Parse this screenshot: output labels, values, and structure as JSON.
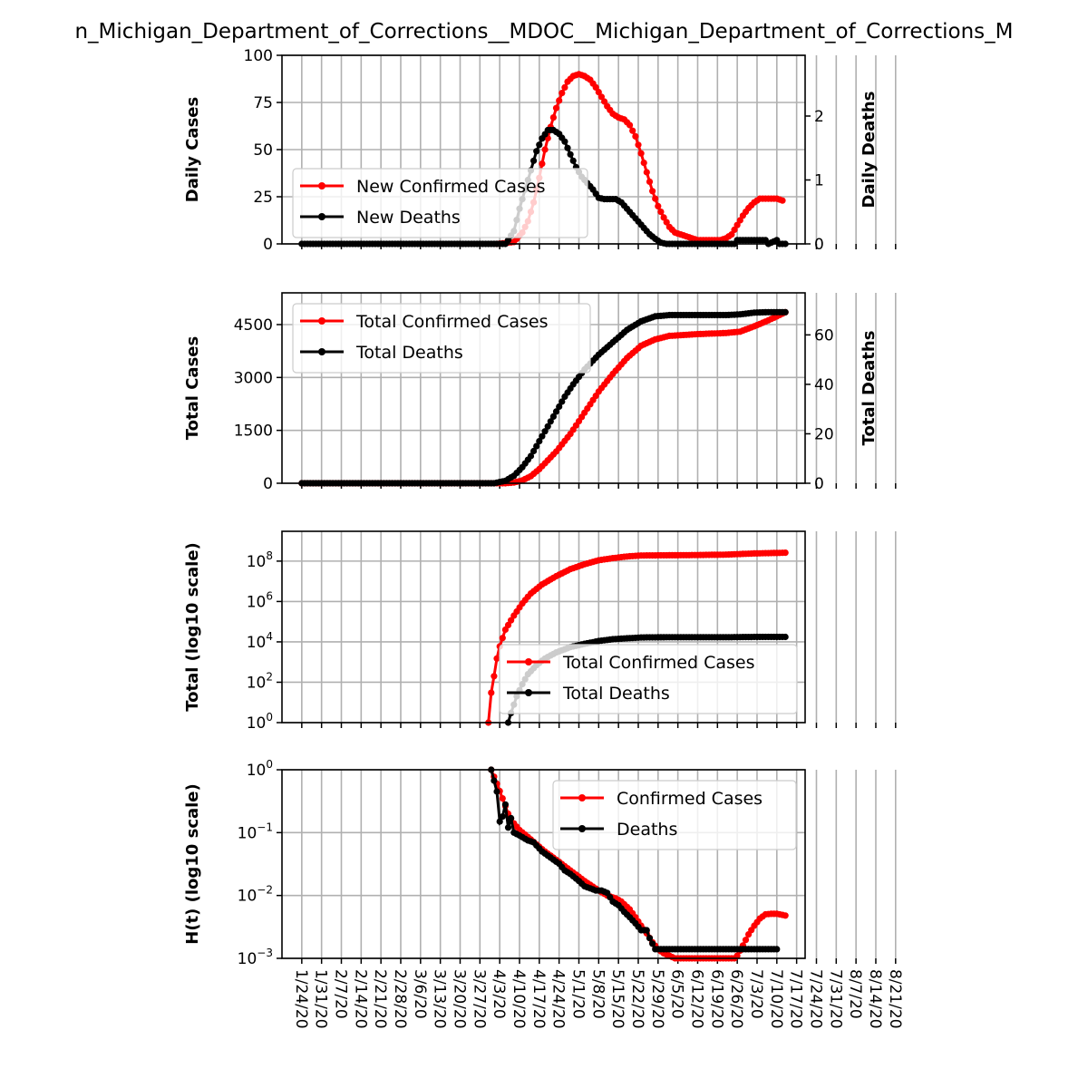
{
  "title": "n_Michigan_Department_of_Corrections__MDOC__Michigan_Department_of_Corrections_M",
  "colors": {
    "cases": "#ff0000",
    "deaths": "#000000",
    "grid": "#b0b0b0"
  },
  "chart_data": [
    {
      "type": "line",
      "ylabel": "Daily Cases",
      "y2label": "Daily Deaths",
      "ylim": [
        0,
        100
      ],
      "y2lim": [
        0,
        2.95
      ],
      "yticks": [
        "0",
        "25",
        "50",
        "75",
        "100"
      ],
      "y2ticks": [
        "0",
        "1",
        "2"
      ],
      "legend_loc": "center-left",
      "series": [
        {
          "name": "New Confirmed Cases",
          "axis": "left",
          "points": [
            [
              69,
              0
            ],
            [
              75,
              1
            ],
            [
              78,
              6
            ],
            [
              80,
              12
            ],
            [
              82,
              22
            ],
            [
              84,
              35
            ],
            [
              86,
              50
            ],
            [
              88,
              62
            ],
            [
              90,
              72
            ],
            [
              92,
              80
            ],
            [
              94,
              86
            ],
            [
              96,
              89
            ],
            [
              98,
              90
            ],
            [
              100,
              89
            ],
            [
              102,
              87
            ],
            [
              104,
              83
            ],
            [
              106,
              78
            ],
            [
              108,
              73
            ],
            [
              110,
              69
            ],
            [
              112,
              67
            ],
            [
              114,
              66
            ],
            [
              116,
              63
            ],
            [
              118,
              57
            ],
            [
              120,
              48
            ],
            [
              122,
              38
            ],
            [
              124,
              28
            ],
            [
              126,
              20
            ],
            [
              128,
              14
            ],
            [
              130,
              9
            ],
            [
              132,
              6
            ],
            [
              134,
              5
            ],
            [
              136,
              4
            ],
            [
              138,
              3
            ],
            [
              140,
              2
            ],
            [
              142,
              2
            ],
            [
              144,
              2
            ],
            [
              146,
              2
            ],
            [
              148,
              2
            ],
            [
              150,
              3
            ],
            [
              152,
              5
            ],
            [
              154,
              10
            ],
            [
              156,
              15
            ],
            [
              158,
              19
            ],
            [
              160,
              22
            ],
            [
              162,
              24
            ],
            [
              164,
              24
            ],
            [
              166,
              24
            ],
            [
              168,
              24
            ],
            [
              170,
              23
            ]
          ]
        },
        {
          "name": "New Deaths",
          "axis": "right",
          "points": [
            [
              0,
              0
            ],
            [
              72,
              0
            ],
            [
              73,
              0.06
            ],
            [
              75,
              0.2
            ],
            [
              77,
              0.55
            ],
            [
              79,
              0.85
            ],
            [
              81,
              1.15
            ],
            [
              83,
              1.45
            ],
            [
              85,
              1.65
            ],
            [
              87,
              1.78
            ],
            [
              89,
              1.78
            ],
            [
              91,
              1.72
            ],
            [
              93,
              1.6
            ],
            [
              95,
              1.4
            ],
            [
              97,
              1.2
            ],
            [
              99,
              1.05
            ],
            [
              101,
              0.95
            ],
            [
              103,
              0.85
            ],
            [
              105,
              0.72
            ],
            [
              107,
              0.7
            ],
            [
              109,
              0.7
            ],
            [
              111,
              0.7
            ],
            [
              113,
              0.65
            ],
            [
              115,
              0.55
            ],
            [
              117,
              0.45
            ],
            [
              119,
              0.35
            ],
            [
              121,
              0.25
            ],
            [
              123,
              0.15
            ],
            [
              125,
              0.08
            ],
            [
              127,
              0.02
            ],
            [
              129,
              0
            ],
            [
              153,
              0
            ],
            [
              154,
              0.06
            ],
            [
              164,
              0.06
            ],
            [
              165,
              0
            ],
            [
              168,
              0.06
            ],
            [
              169,
              0
            ],
            [
              171,
              0
            ]
          ]
        }
      ]
    },
    {
      "type": "line",
      "ylabel": "Total Cases",
      "y2label": "Total Deaths",
      "ylim": [
        0,
        5400
      ],
      "y2lim": [
        0,
        77
      ],
      "yticks": [
        "0",
        "1500",
        "3000",
        "4500"
      ],
      "y2ticks": [
        "0",
        "20",
        "40",
        "60"
      ],
      "legend_loc": "upper-left",
      "series": [
        {
          "name": "Total Confirmed Cases",
          "axis": "left",
          "points": [
            [
              0,
              0
            ],
            [
              68,
              0
            ],
            [
              72,
              0
            ],
            [
              75,
              20
            ],
            [
              78,
              80
            ],
            [
              81,
              200
            ],
            [
              84,
              400
            ],
            [
              87,
              650
            ],
            [
              90,
              900
            ],
            [
              95,
              1400
            ],
            [
              100,
              2000
            ],
            [
              105,
              2600
            ],
            [
              110,
              3100
            ],
            [
              115,
              3550
            ],
            [
              120,
              3900
            ],
            [
              125,
              4080
            ],
            [
              130,
              4180
            ],
            [
              140,
              4230
            ],
            [
              150,
              4260
            ],
            [
              155,
              4300
            ],
            [
              160,
              4450
            ],
            [
              165,
              4620
            ],
            [
              171,
              4850
            ]
          ]
        },
        {
          "name": "Total Deaths",
          "axis": "right",
          "points": [
            [
              0,
              0
            ],
            [
              68,
              0
            ],
            [
              72,
              1
            ],
            [
              75,
              3
            ],
            [
              78,
              6.5
            ],
            [
              81,
              11
            ],
            [
              84,
              17
            ],
            [
              87,
              23
            ],
            [
              90,
              29
            ],
            [
              93,
              35
            ],
            [
              96,
              40
            ],
            [
              100,
              46
            ],
            [
              105,
              52
            ],
            [
              110,
              57
            ],
            [
              115,
              62
            ],
            [
              120,
              65.5
            ],
            [
              125,
              67.5
            ],
            [
              130,
              68
            ],
            [
              150,
              68
            ],
            [
              155,
              68.3
            ],
            [
              160,
              69
            ],
            [
              165,
              69.2
            ],
            [
              171,
              69.2
            ]
          ]
        }
      ]
    },
    {
      "type": "line",
      "ylabel": "Total (log10 scale)",
      "yscale": "log",
      "ylim": [
        1,
        3000000000
      ],
      "yticks": [
        "10^0",
        "10^2",
        "10^4",
        "10^6",
        "10^8"
      ],
      "legend_loc": "lower-right",
      "series": [
        {
          "name": "Total Confirmed Cases",
          "points": [
            [
              66,
              1
            ],
            [
              67,
              30
            ],
            [
              68,
              200
            ],
            [
              69,
              1500
            ],
            [
              70,
              6000
            ],
            [
              72,
              40000
            ],
            [
              75,
              200000
            ],
            [
              78,
              800000
            ],
            [
              81,
              2500000
            ],
            [
              85,
              7000000
            ],
            [
              90,
              18000000
            ],
            [
              95,
              40000000
            ],
            [
              100,
              70000000
            ],
            [
              105,
              110000000
            ],
            [
              110,
              140000000
            ],
            [
              115,
              170000000
            ],
            [
              120,
              190000000
            ],
            [
              130,
              195000000
            ],
            [
              140,
              200000000
            ],
            [
              150,
              210000000
            ],
            [
              160,
              240000000
            ],
            [
              171,
              260000000
            ]
          ]
        },
        {
          "name": "Total Deaths",
          "points": [
            [
              73,
              1
            ],
            [
              74,
              3
            ],
            [
              76,
              20
            ],
            [
              78,
              80
            ],
            [
              80,
              250
            ],
            [
              83,
              700
            ],
            [
              86,
              1500
            ],
            [
              90,
              3000
            ],
            [
              95,
              5500
            ],
            [
              100,
              8000
            ],
            [
              105,
              11000
            ],
            [
              110,
              13500
            ],
            [
              115,
              15000
            ],
            [
              120,
              16500
            ],
            [
              130,
              17000
            ],
            [
              150,
              17000
            ],
            [
              160,
              17500
            ],
            [
              171,
              17500
            ]
          ]
        }
      ]
    },
    {
      "type": "line",
      "ylabel": "H(t) (log10 scale)",
      "yscale": "log",
      "ylim": [
        0.001,
        1
      ],
      "yticks": [
        "10^-3",
        "10^-2",
        "10^-1",
        "10^0"
      ],
      "legend_loc": "upper-right",
      "series": [
        {
          "name": "Confirmed Cases",
          "points": [
            [
              67,
              1
            ],
            [
              69,
              0.6
            ],
            [
              71,
              0.35
            ],
            [
              73,
              0.2
            ],
            [
              75,
              0.14
            ],
            [
              77,
              0.11
            ],
            [
              80,
              0.085
            ],
            [
              83,
              0.065
            ],
            [
              86,
              0.05
            ],
            [
              90,
              0.037
            ],
            [
              95,
              0.025
            ],
            [
              100,
              0.017
            ],
            [
              105,
              0.012
            ],
            [
              108,
              0.01
            ],
            [
              111,
              0.009
            ],
            [
              113,
              0.008
            ],
            [
              116,
              0.006
            ],
            [
              118,
              0.0045
            ],
            [
              120,
              0.0033
            ],
            [
              122,
              0.0025
            ],
            [
              124,
              0.0018
            ],
            [
              126,
              0.0014
            ],
            [
              128,
              0.0012
            ],
            [
              130,
              0.0011
            ],
            [
              132,
              0.001
            ],
            [
              153,
              0.001
            ],
            [
              154,
              0.0011
            ],
            [
              156,
              0.0016
            ],
            [
              158,
              0.0024
            ],
            [
              160,
              0.0033
            ],
            [
              162,
              0.0043
            ],
            [
              164,
              0.005
            ],
            [
              166,
              0.0051
            ],
            [
              168,
              0.0051
            ],
            [
              170,
              0.0049
            ],
            [
              171,
              0.0048
            ]
          ]
        },
        {
          "name": "Deaths",
          "points": [
            [
              67,
              1
            ],
            [
              69,
              0.45
            ],
            [
              70,
              0.15
            ],
            [
              71,
              0.18
            ],
            [
              72,
              0.28
            ],
            [
              73,
              0.12
            ],
            [
              74,
              0.17
            ],
            [
              75,
              0.1
            ],
            [
              77,
              0.09
            ],
            [
              80,
              0.075
            ],
            [
              82,
              0.07
            ],
            [
              85,
              0.05
            ],
            [
              88,
              0.04
            ],
            [
              91,
              0.032
            ],
            [
              93,
              0.025
            ],
            [
              95,
              0.022
            ],
            [
              98,
              0.017
            ],
            [
              100,
              0.014
            ],
            [
              102,
              0.013
            ],
            [
              104,
              0.012
            ],
            [
              106,
              0.012
            ],
            [
              108,
              0.011
            ],
            [
              110,
              0.008
            ],
            [
              112,
              0.007
            ],
            [
              114,
              0.0055
            ],
            [
              116,
              0.0045
            ],
            [
              118,
              0.0036
            ],
            [
              120,
              0.0028
            ],
            [
              122,
              0.0028
            ],
            [
              123,
              0.0021
            ],
            [
              125,
              0.0014
            ],
            [
              128,
              0.0014
            ],
            [
              130,
              0.0014
            ],
            [
              153,
              0.0014
            ],
            [
              164,
              0.0014
            ],
            [
              165,
              0.0014
            ],
            [
              168,
              0.0014
            ]
          ]
        }
      ]
    }
  ],
  "x_tick_labels": [
    "1/24/20",
    "1/31/20",
    "2/7/20",
    "2/14/20",
    "2/21/20",
    "2/28/20",
    "3/6/20",
    "3/13/20",
    "3/20/20",
    "3/27/20",
    "4/3/20",
    "4/10/20",
    "4/17/20",
    "4/24/20",
    "5/1/20",
    "5/8/20",
    "5/15/20",
    "5/22/20",
    "5/29/20",
    "6/5/20",
    "6/12/20",
    "6/19/20",
    "6/26/20",
    "7/3/20",
    "7/10/20",
    "7/17/20",
    "7/24/20",
    "7/31/20",
    "8/7/20",
    "8/14/20",
    "8/21/20"
  ]
}
